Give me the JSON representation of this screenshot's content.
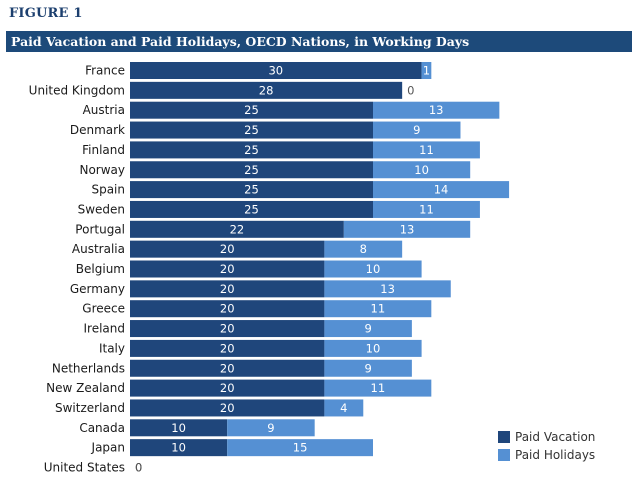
{
  "figure_label": "FIGURE 1",
  "chart_data": {
    "type": "bar",
    "orientation": "horizontal",
    "stacked": true,
    "title": "Paid Vacation and Paid Holidays, OECD Nations, in Working Days",
    "categories": [
      "France",
      "United Kingdom",
      "Austria",
      "Denmark",
      "Finland",
      "Norway",
      "Spain",
      "Sweden",
      "Portugal",
      "Australia",
      "Belgium",
      "Germany",
      "Greece",
      "Ireland",
      "Italy",
      "Netherlands",
      "New Zealand",
      "Switzerland",
      "Canada",
      "Japan",
      "United States"
    ],
    "series": [
      {
        "name": "Paid Vacation",
        "color": "#1f467b",
        "values": [
          30,
          28,
          25,
          25,
          25,
          25,
          25,
          25,
          22,
          20,
          20,
          20,
          20,
          20,
          20,
          20,
          20,
          20,
          10,
          10,
          0
        ]
      },
      {
        "name": "Paid Holidays",
        "color": "#5590d3",
        "values": [
          1,
          0,
          13,
          9,
          11,
          10,
          14,
          11,
          13,
          8,
          10,
          13,
          11,
          9,
          10,
          9,
          11,
          4,
          9,
          15,
          0
        ]
      }
    ],
    "legend_position": "bottom-right",
    "grid": false,
    "xlim": [
      0,
      40
    ]
  }
}
